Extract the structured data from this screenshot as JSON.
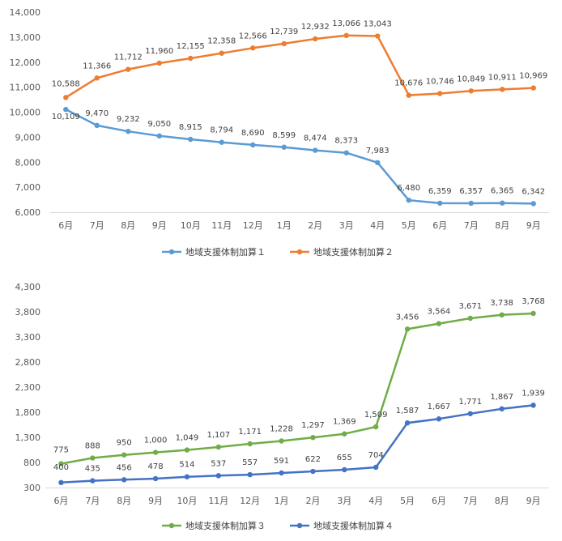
{
  "chart_data": [
    {
      "type": "line",
      "categories": [
        "6月",
        "7月",
        "8月",
        "9月",
        "10月",
        "11月",
        "12月",
        "1月",
        "2月",
        "3月",
        "4月",
        "5月",
        "6月",
        "7月",
        "8月",
        "9月"
      ],
      "ylim": [
        6000,
        14000
      ],
      "yticks": [
        6000,
        7000,
        8000,
        9000,
        10000,
        11000,
        12000,
        13000,
        14000
      ],
      "ytick_labels": [
        "6,000",
        "7,000",
        "8,000",
        "9,000",
        "10,000",
        "11,000",
        "12,000",
        "13,000",
        "14,000"
      ],
      "grid": false,
      "legend_position": "bottom",
      "series": [
        {
          "name": "地域支援体制加算１",
          "color": "#5B9BD5",
          "values": [
            10109,
            9470,
            9232,
            9050,
            8915,
            8794,
            8690,
            8599,
            8474,
            8373,
            7983,
            6480,
            6359,
            6357,
            6365,
            6342
          ],
          "labels": [
            "10,109",
            "9,470",
            "9,232",
            "9,050",
            "8,915",
            "8,794",
            "8,690",
            "8,599",
            "8,474",
            "8,373",
            "7,983",
            "6,480",
            "6,359",
            "6,357",
            "6,365",
            "6,342"
          ]
        },
        {
          "name": "地域支援体制加算２",
          "color": "#ED7D31",
          "values": [
            10588,
            11366,
            11712,
            11960,
            12155,
            12358,
            12566,
            12739,
            12932,
            13066,
            13043,
            10676,
            10746,
            10849,
            10911,
            10969
          ],
          "labels": [
            "10,588",
            "11,366",
            "11,712",
            "11,960",
            "12,155",
            "12,358",
            "12,566",
            "12,739",
            "12,932",
            "13,066",
            "13,043",
            "10,676",
            "10,746",
            "10,849",
            "10,911",
            "10,969"
          ]
        }
      ]
    },
    {
      "type": "line",
      "categories": [
        "6月",
        "7月",
        "8月",
        "9月",
        "10月",
        "11月",
        "12月",
        "1月",
        "2月",
        "3月",
        "4月",
        "5月",
        "6月",
        "7月",
        "8月",
        "9月"
      ],
      "ylim": [
        300,
        4300
      ],
      "yticks": [
        300,
        800,
        1300,
        1800,
        2300,
        2800,
        3300,
        3800,
        4300
      ],
      "ytick_labels": [
        "300",
        "800",
        "1,300",
        "1,800",
        "2,300",
        "2,800",
        "3,300",
        "3,800",
        "4,300"
      ],
      "grid": false,
      "legend_position": "bottom",
      "series": [
        {
          "name": "地域支援体制加算３",
          "color": "#70AD47",
          "values": [
            775,
            888,
            950,
            1000,
            1049,
            1107,
            1171,
            1228,
            1297,
            1369,
            1509,
            3456,
            3564,
            3671,
            3738,
            3768
          ],
          "labels": [
            "775",
            "888",
            "950",
            "1,000",
            "1,049",
            "1,107",
            "1,171",
            "1,228",
            "1,297",
            "1,369",
            "1,509",
            "3,456",
            "3,564",
            "3,671",
            "3,738",
            "3,768"
          ]
        },
        {
          "name": "地域支援体制加算４",
          "color": "#4472C4",
          "values": [
            400,
            435,
            456,
            478,
            514,
            537,
            557,
            591,
            622,
            655,
            704,
            1587,
            1667,
            1771,
            1867,
            1939
          ],
          "labels": [
            "400",
            "435",
            "456",
            "478",
            "514",
            "537",
            "557",
            "591",
            "622",
            "655",
            "704",
            "1,587",
            "1,667",
            "1,771",
            "1,867",
            "1,939"
          ]
        }
      ]
    }
  ]
}
